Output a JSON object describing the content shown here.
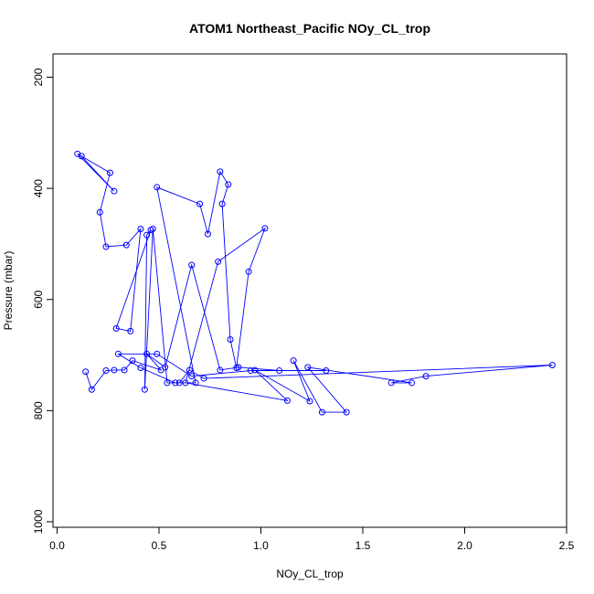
{
  "chart_data": {
    "type": "line",
    "title": "ATOM1 Northeast_Pacific NOy_CL_trop",
    "xlabel": "NOy_CL_trop",
    "ylabel": "Pressure (mbar)",
    "xlim": [
      -0.02,
      2.5
    ],
    "ylim": [
      1010,
      158
    ],
    "y_reversed": true,
    "xticks": [
      0.0,
      0.5,
      1.0,
      1.5,
      2.0,
      2.5
    ],
    "xtick_labels": [
      "0.0",
      "0.5",
      "1.0",
      "1.5",
      "2.0",
      "2.5"
    ],
    "yticks": [
      200,
      400,
      600,
      800,
      1000
    ],
    "ytick_labels": [
      "200",
      "400",
      "600",
      "800",
      "1000"
    ],
    "color": "#0000ff",
    "marker": "open-circle",
    "x": [
      0.12,
      0.28,
      0.1,
      0.26,
      0.21,
      0.24,
      0.34,
      0.41,
      0.36,
      0.29,
      0.46,
      0.44,
      0.43,
      0.47,
      0.54,
      0.68,
      0.49,
      0.7,
      0.74,
      0.8,
      0.84,
      0.81,
      0.85,
      0.88,
      0.94,
      1.02,
      0.79,
      0.63,
      1.13,
      0.97,
      1.24,
      1.16,
      1.3,
      1.42,
      1.23,
      1.74,
      1.64,
      1.81,
      2.43,
      0.72,
      0.65,
      0.6,
      0.58,
      0.41,
      0.3,
      0.49,
      0.66,
      0.95,
      1.32,
      1.09,
      0.89,
      0.8,
      0.66,
      0.53,
      0.44,
      0.51,
      0.37,
      0.33,
      0.28,
      0.24,
      0.17,
      0.14
    ],
    "y": [
      342,
      405,
      338,
      372,
      443,
      505,
      502,
      473,
      657,
      652,
      475,
      484,
      762,
      473,
      750,
      750,
      398,
      428,
      482,
      370,
      393,
      428,
      672,
      723,
      550,
      472,
      532,
      750,
      782,
      727,
      783,
      710,
      803,
      803,
      722,
      750,
      750,
      738,
      718,
      742,
      727,
      750,
      750,
      723,
      698,
      698,
      738,
      728,
      728,
      728,
      722,
      727,
      538,
      722,
      698,
      727,
      710,
      727,
      727,
      728,
      762,
      730
    ]
  }
}
